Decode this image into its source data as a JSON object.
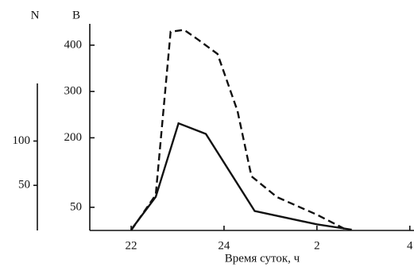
{
  "chart_data": {
    "type": "line",
    "xlabel": "Время суток, ч",
    "ylabel": "B",
    "y2label": "N",
    "x_dashed": [
      22,
      22.53,
      22.85,
      23.14,
      23.44,
      23.86,
      24.29,
      24.59,
      25.14,
      26.0,
      26.66
    ],
    "x_solid": [
      22,
      22.53,
      23.02,
      23.61,
      24.66,
      26.0,
      26.75
    ],
    "series": [
      {
        "color": "#111111",
        "dash": true,
        "values": [
          0,
          77,
          429,
          433,
          412,
          381,
          258,
          117,
          72,
          34,
          0
        ]
      },
      {
        "color": "#111111",
        "dash": false,
        "axis": "y2",
        "values": [
          0,
          37,
          120,
          108,
          21,
          6,
          0
        ]
      }
    ],
    "xlim": [
      21.11,
      28.09
    ],
    "xticks": [
      22,
      24,
      {
        "value": 26,
        "label": "2"
      },
      {
        "value": 28,
        "label": "4"
      }
    ],
    "ylim": [
      0,
      446
    ],
    "yticks": [
      50,
      200,
      300,
      400
    ],
    "y2lim": [
      0,
      165
    ],
    "y2ticks": [
      50,
      100
    ]
  }
}
